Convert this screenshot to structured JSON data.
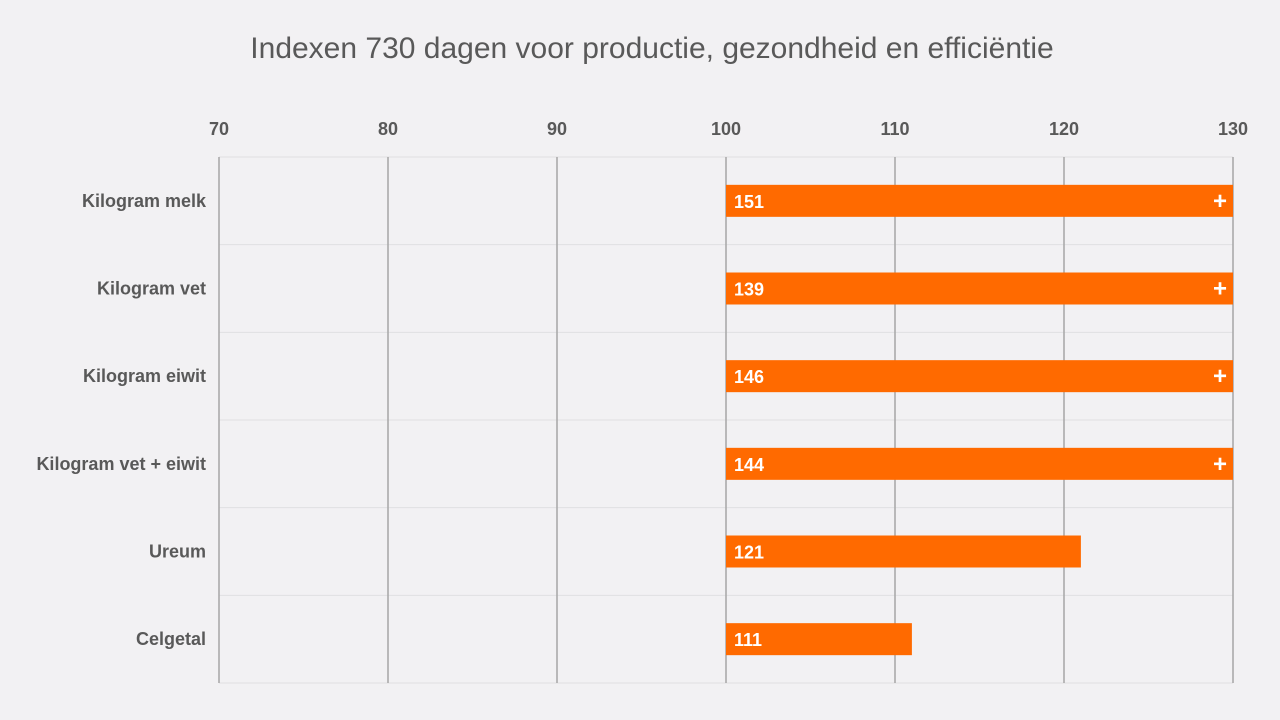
{
  "chart_data": {
    "type": "bar",
    "orientation": "horizontal",
    "title": "Indexen 730 dagen voor productie, gezondheid en efficiëntie",
    "categories": [
      "Kilogram melk",
      "Kilogram vet",
      "Kilogram eiwit",
      "Kilogram vet + eiwit",
      "Ureum",
      "Celgetal"
    ],
    "values": [
      151,
      139,
      146,
      144,
      121,
      111
    ],
    "value_labels": [
      "151",
      "139",
      "146",
      "144",
      "121",
      "111"
    ],
    "baseline": 100,
    "xlim": [
      70,
      130
    ],
    "x_ticks": [
      70,
      80,
      90,
      100,
      110,
      120,
      130
    ],
    "x_tick_labels": [
      "70",
      "80",
      "90",
      "100",
      "110",
      "120",
      "130"
    ],
    "x_axis_position": "top",
    "overflow_marker": "+",
    "grid": true,
    "legend": "none",
    "bar_color": "#ff6a00",
    "grid_color": "#a6a6a6",
    "text_color": "#595959"
  }
}
